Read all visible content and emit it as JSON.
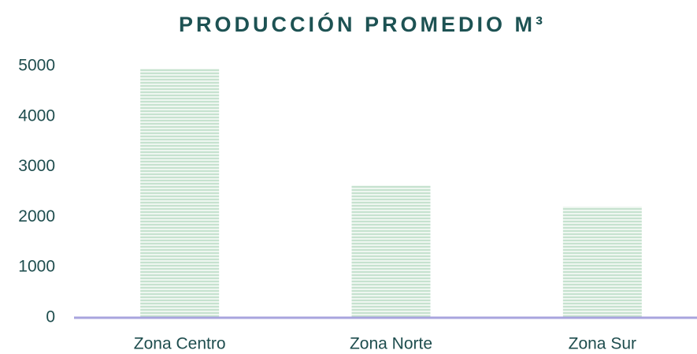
{
  "chart_data": {
    "type": "bar",
    "title": "PRODUCCIÓN PROMEDIO M³",
    "categories": [
      "Zona Centro",
      "Zona Norte",
      "Zona Sur"
    ],
    "values": [
      4950,
      2630,
      2210
    ],
    "color": "#c6e2cf",
    "ylim": [
      0,
      5000
    ],
    "yticks": [
      0,
      1000,
      2000,
      3000,
      4000,
      5000
    ],
    "grid": false
  }
}
